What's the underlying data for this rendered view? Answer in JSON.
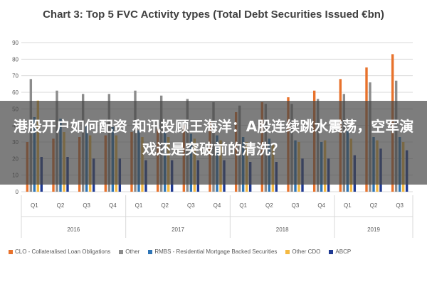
{
  "chart_data": {
    "type": "bar",
    "title": "Chart 3: Top 5 FVC Activity types (Total Debt Securities Issued €bn)",
    "ylim": [
      0,
      90
    ],
    "yticks": [
      0,
      10,
      20,
      30,
      40,
      50,
      60,
      70,
      80,
      90
    ],
    "grid": true,
    "legend_position": "bottom",
    "categories": [
      "Q1",
      "Q2",
      "Q3",
      "Q4",
      "Q1",
      "Q2",
      "Q3",
      "Q4",
      "Q1",
      "Q2",
      "Q3",
      "Q4",
      "Q1",
      "Q2",
      "Q3"
    ],
    "groups": [
      {
        "label": "2016",
        "span": 4
      },
      {
        "label": "2017",
        "span": 4
      },
      {
        "label": "2018",
        "span": 4
      },
      {
        "label": "2019",
        "span": 3
      }
    ],
    "series": [
      {
        "name": "CLO - Collateralised Loan Obligations",
        "color": "#E8722C",
        "values": [
          30,
          32,
          33,
          34,
          36,
          38,
          40,
          42,
          48,
          54,
          57,
          61,
          68,
          75,
          83
        ]
      },
      {
        "name": "Other",
        "color": "#8C8C8C",
        "values": [
          68,
          61,
          59,
          59,
          61,
          58,
          56,
          54,
          52,
          53,
          53,
          56,
          59,
          66,
          67
        ]
      },
      {
        "name": "RMBS - Residential Mortgage Backed Securities",
        "color": "#2E75B6",
        "values": [
          45,
          44,
          40,
          39,
          37,
          36,
          35,
          34,
          33,
          32,
          31,
          30,
          37,
          33,
          33
        ]
      },
      {
        "name": "Other CDO",
        "color": "#F4B942",
        "values": [
          55,
          36,
          34,
          34,
          33,
          33,
          32,
          31,
          30,
          29,
          30,
          31,
          32,
          31,
          30
        ]
      },
      {
        "name": "ABCP",
        "color": "#1F3A93",
        "values": [
          21,
          21,
          20,
          20,
          19,
          19,
          19,
          19,
          18,
          18,
          20,
          20,
          22,
          26,
          25
        ]
      }
    ]
  },
  "overlay": {
    "text": "港股开户如何配资 和讯投顾王海洋：A股连续跳水震荡，空军演戏还是突破前的清洗？"
  }
}
